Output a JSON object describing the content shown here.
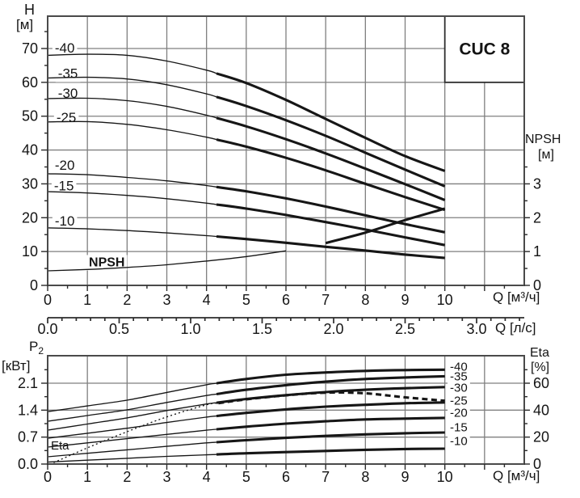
{
  "pump_model": "CUC 8",
  "chart_data": [
    {
      "id": "head-npsh-chart",
      "type": "line",
      "title": "CUC 8",
      "x_axis_title": "Q [м³/ч]",
      "x2_axis_title": "Q [л/с]",
      "y_axis_title": [
        "H",
        "[м]"
      ],
      "right_axis_title": [
        "NPSH",
        "[м]"
      ],
      "xlim": [
        0,
        12
      ],
      "ylim": [
        0,
        79.5
      ],
      "right_lim": [
        0,
        7.95
      ],
      "x2_lim": [
        0,
        3.33
      ],
      "grid": true,
      "legend_position": "on-curve",
      "x_ticks": [
        [
          0,
          "0"
        ],
        [
          1,
          "1"
        ],
        [
          2,
          "2"
        ],
        [
          3,
          "3"
        ],
        [
          4,
          "4"
        ],
        [
          5,
          "5"
        ],
        [
          6,
          "6"
        ],
        [
          7,
          "7"
        ],
        [
          8,
          "8"
        ],
        [
          9,
          "9"
        ],
        [
          10,
          "10"
        ],
        [
          11,
          ""
        ]
      ],
      "y_ticks": [
        [
          0,
          "0"
        ],
        [
          10,
          "10"
        ],
        [
          20,
          "20"
        ],
        [
          30,
          "30"
        ],
        [
          40,
          "40"
        ],
        [
          50,
          "50"
        ],
        [
          60,
          "60"
        ],
        [
          70,
          "70"
        ]
      ],
      "y_minor_ticks": [
        5,
        15,
        25,
        35,
        45,
        55,
        65,
        75
      ],
      "right_ticks": [
        [
          0,
          "0"
        ],
        [
          1,
          "1"
        ],
        [
          2,
          "2"
        ],
        [
          3,
          "3"
        ]
      ],
      "right_minor_ticks": [
        0.5,
        1.5,
        2.5,
        3.5
      ],
      "x2_ticks": [
        [
          0,
          "0.0"
        ],
        [
          0.5,
          "0.5"
        ],
        [
          1,
          "1.0"
        ],
        [
          1.5,
          "1.5"
        ],
        [
          2,
          "2.0"
        ],
        [
          2.5,
          "2.5"
        ],
        [
          3,
          "3.0"
        ]
      ],
      "y_gridlines": [
        10,
        20,
        30,
        40,
        50,
        60,
        70
      ],
      "x": [
        0,
        1,
        2,
        3,
        4,
        5,
        6,
        7,
        8,
        9,
        10
      ],
      "series": [
        {
          "name": "-40",
          "axis": "left",
          "thick_from": 4.25,
          "label": "-40",
          "label_at": [
            0.43,
            70.1
          ],
          "values": [
            68,
            68.3,
            68,
            66.3,
            63.6,
            59.8,
            54.8,
            49.2,
            43.6,
            38.2,
            33.8
          ]
        },
        {
          "name": "-35",
          "axis": "left",
          "thick_from": 4.25,
          "label": "-35",
          "label_at": [
            0.51,
            62.6
          ],
          "values": [
            61.3,
            61.5,
            61,
            59.3,
            56.6,
            53,
            48.8,
            44.2,
            39.2,
            34.2,
            29.3
          ]
        },
        {
          "name": "-30",
          "axis": "left",
          "thick_from": 4.25,
          "label": "-30",
          "label_at": [
            0.51,
            56.7
          ],
          "values": [
            55.2,
            55.3,
            54.6,
            52.9,
            50.3,
            47,
            43.2,
            39,
            34.5,
            29.9,
            25.2
          ]
        },
        {
          "name": "-25",
          "axis": "left",
          "thick_from": 4.25,
          "label": "-25",
          "label_at": [
            0.47,
            49.6
          ],
          "values": [
            48.3,
            48.4,
            47.6,
            46,
            43.8,
            41,
            37.7,
            34,
            30,
            26.1,
            22.3
          ]
        },
        {
          "name": "-20",
          "axis": "left",
          "thick_from": 4.25,
          "label": "-20",
          "label_at": [
            0.43,
            35.5
          ],
          "values": [
            33,
            32.7,
            31.9,
            30.9,
            29.5,
            27.8,
            25.7,
            23.3,
            20.7,
            18.1,
            15.7
          ]
        },
        {
          "name": "-15",
          "axis": "left",
          "thick_from": 4.25,
          "label": "-15",
          "label_at": [
            0.41,
            29.4
          ],
          "values": [
            27.7,
            27.3,
            26.6,
            25.6,
            24.3,
            22.7,
            20.8,
            18.7,
            16.5,
            14.2,
            11.9
          ]
        },
        {
          "name": "-10",
          "axis": "left",
          "thick_from": 4.25,
          "label": "-10",
          "label_at": [
            0.43,
            19
          ],
          "values": [
            17,
            16.7,
            16.2,
            15.5,
            14.7,
            13.7,
            12.6,
            11.4,
            10.3,
            9.1,
            8.1
          ]
        },
        {
          "name": "NPSH",
          "axis": "right",
          "thick_from": 6,
          "label": "NPSH",
          "label_bold": true,
          "label_at": [
            1.49,
            0.67
          ],
          "values": [
            0.43,
            0.47,
            0.53,
            0.61,
            0.72,
            0.85,
            1.02,
            1.25,
            1.56,
            1.93,
            2.27
          ]
        }
      ]
    },
    {
      "id": "power-eta-chart",
      "type": "line",
      "x_axis_title": "Q [м³/ч]",
      "y_axis_title_main": "P",
      "y_axis_title_sub": "2",
      "y_axis_title_unit": "[кВт]",
      "right_axis_title": [
        "Eta",
        "[%]"
      ],
      "xlim": [
        0,
        12
      ],
      "ylim": [
        0,
        2.81
      ],
      "right_lim": [
        0,
        80.4
      ],
      "grid": true,
      "legend_position": "right-of-curves",
      "x_ticks": [
        [
          0,
          "0"
        ],
        [
          1,
          "1"
        ],
        [
          2,
          "2"
        ],
        [
          3,
          "3"
        ],
        [
          4,
          "4"
        ],
        [
          5,
          "5"
        ],
        [
          6,
          "6"
        ],
        [
          7,
          "7"
        ],
        [
          8,
          "8"
        ],
        [
          9,
          "9"
        ],
        [
          10,
          "10"
        ],
        [
          11,
          ""
        ]
      ],
      "y_ticks": [
        [
          0,
          "0.0"
        ],
        [
          0.7,
          "0.7"
        ],
        [
          1.4,
          "1.4"
        ],
        [
          2.1,
          "2.1"
        ]
      ],
      "y_minor_ticks": [
        0.35,
        1.05,
        1.75,
        2.45
      ],
      "right_ticks": [
        [
          0,
          "0"
        ],
        [
          20,
          "20"
        ],
        [
          40,
          "40"
        ],
        [
          60,
          "60"
        ]
      ],
      "right_minor_ticks": [
        10,
        30,
        50,
        70
      ],
      "y_gridlines": [
        0.7,
        1.4,
        2.1
      ],
      "x": [
        0,
        1,
        2,
        3,
        4,
        5,
        6,
        7,
        8,
        9,
        10
      ],
      "series": [
        {
          "name": "-40",
          "axis": "left",
          "thick_from": 4.25,
          "label": "-40",
          "label_at": [
            10.13,
            2.52
          ],
          "label_anchor": "start",
          "values": [
            1.36,
            1.51,
            1.66,
            1.86,
            2.06,
            2.21,
            2.32,
            2.38,
            2.42,
            2.44,
            2.45
          ]
        },
        {
          "name": "-35",
          "axis": "left",
          "thick_from": 4.25,
          "label": "-35",
          "label_at": [
            10.13,
            2.27
          ],
          "label_anchor": "start",
          "values": [
            1.11,
            1.26,
            1.41,
            1.6,
            1.78,
            1.93,
            2.05,
            2.14,
            2.21,
            2.25,
            2.28
          ]
        },
        {
          "name": "-30",
          "axis": "left",
          "thick_from": 4.25,
          "label": "-30",
          "label_at": [
            10.13,
            1.97
          ],
          "label_anchor": "start",
          "values": [
            0.88,
            1.04,
            1.2,
            1.39,
            1.56,
            1.69,
            1.79,
            1.87,
            1.93,
            1.97,
            2
          ]
        },
        {
          "name": "-25",
          "axis": "left",
          "thick_from": 4.25,
          "label": "-25",
          "label_at": [
            10.13,
            1.64
          ],
          "label_anchor": "start",
          "values": [
            0.67,
            0.8,
            0.93,
            1.08,
            1.22,
            1.33,
            1.42,
            1.49,
            1.54,
            1.58,
            1.6
          ]
        },
        {
          "name": "-20",
          "axis": "left",
          "thick_from": 4.25,
          "label": "-20",
          "label_at": [
            10.13,
            1.32
          ],
          "label_anchor": "start",
          "values": [
            0.44,
            0.55,
            0.66,
            0.77,
            0.88,
            0.97,
            1.05,
            1.11,
            1.16,
            1.18,
            1.2
          ]
        },
        {
          "name": "-15",
          "axis": "left",
          "thick_from": 4.25,
          "label": "-15",
          "label_at": [
            10.13,
            0.95
          ],
          "label_anchor": "start",
          "values": [
            0.19,
            0.28,
            0.37,
            0.46,
            0.55,
            0.62,
            0.68,
            0.73,
            0.77,
            0.8,
            0.82
          ]
        },
        {
          "name": "-10",
          "axis": "left",
          "thick_from": 4.25,
          "label": "-10",
          "label_at": [
            10.13,
            0.59
          ],
          "label_anchor": "start",
          "values": [
            0.05,
            0.1,
            0.15,
            0.2,
            0.24,
            0.28,
            0.31,
            0.34,
            0.37,
            0.39,
            0.4
          ]
        },
        {
          "name": "Eta",
          "axis": "right",
          "style": "dotted-then-dashed",
          "dash_from": 4.3,
          "label": "Eta",
          "label_at": [
            0.31,
            13.5
          ],
          "x": [
            0.15,
            1,
            2,
            3,
            4,
            5,
            6,
            7,
            8,
            9,
            10
          ],
          "values": [
            1,
            12,
            24,
            35,
            44,
            48,
            51,
            53,
            52.5,
            49.5,
            47
          ]
        }
      ]
    }
  ],
  "colors": {
    "curve": "#161616",
    "grid": "#7f7f7f",
    "frame": "#4a4a4a",
    "text": "#141414",
    "background": "#ffffff"
  }
}
